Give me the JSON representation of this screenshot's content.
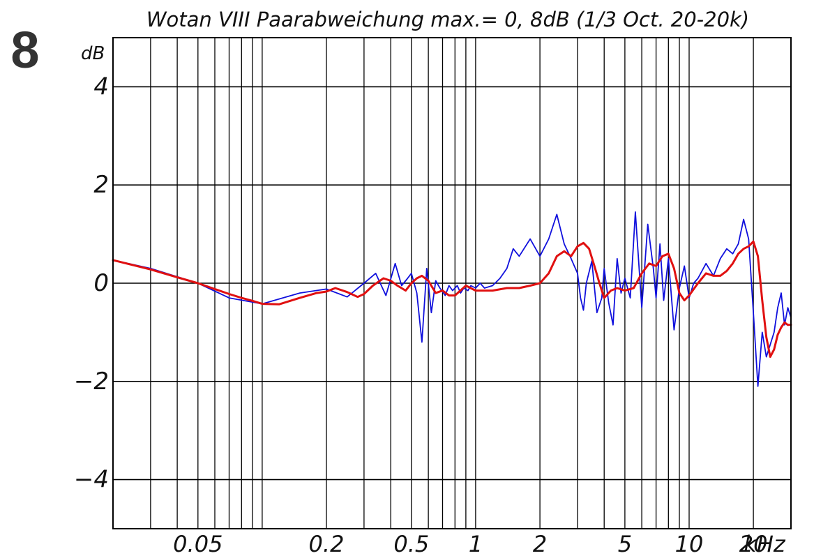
{
  "badge": "8",
  "chart_data": {
    "type": "line",
    "title": "Wotan VIII Paarabweichung  max.= 0, 8dB (1/3 Oct. 20-20k)",
    "ylabel": "dB",
    "xlabel": "",
    "x_unit": "kHz",
    "x_scale": "log",
    "xlim": [
      0.02,
      30
    ],
    "ylim": [
      -5,
      5
    ],
    "grid": true,
    "x_ticks": [
      {
        "value": 0.05,
        "label": "0.05"
      },
      {
        "value": 0.2,
        "label": "0.2"
      },
      {
        "value": 0.5,
        "label": "0.5"
      },
      {
        "value": 1,
        "label": "1"
      },
      {
        "value": 2,
        "label": "2"
      },
      {
        "value": 5,
        "label": "5"
      },
      {
        "value": 10,
        "label": "10"
      },
      {
        "value": 20,
        "label": "20"
      }
    ],
    "x_minor_grid": [
      0.03,
      0.04,
      0.05,
      0.06,
      0.07,
      0.08,
      0.09,
      0.1,
      0.2,
      0.3,
      0.4,
      0.5,
      0.6,
      0.7,
      0.8,
      0.9,
      1,
      2,
      3,
      4,
      5,
      6,
      7,
      8,
      9,
      10,
      20
    ],
    "y_ticks": [
      4,
      2,
      0,
      -2,
      -4
    ],
    "y_tick_labels": [
      "4",
      "2",
      "0",
      "−2",
      "−4"
    ],
    "series": [
      {
        "color": "#1010dd",
        "x": [
          0.02,
          0.03,
          0.05,
          0.07,
          0.1,
          0.15,
          0.2,
          0.25,
          0.3,
          0.34,
          0.38,
          0.42,
          0.45,
          0.48,
          0.5,
          0.53,
          0.56,
          0.59,
          0.62,
          0.65,
          0.68,
          0.72,
          0.75,
          0.78,
          0.82,
          0.85,
          0.88,
          0.92,
          0.95,
          1.0,
          1.05,
          1.1,
          1.2,
          1.3,
          1.4,
          1.5,
          1.6,
          1.8,
          2.0,
          2.2,
          2.4,
          2.6,
          2.8,
          3.0,
          3.1,
          3.2,
          3.3,
          3.5,
          3.7,
          3.9,
          4.0,
          4.2,
          4.4,
          4.6,
          4.8,
          5.0,
          5.3,
          5.6,
          6.0,
          6.4,
          6.8,
          7.0,
          7.3,
          7.6,
          8.0,
          8.5,
          9.0,
          9.5,
          10.0,
          10.5,
          11.0,
          12.0,
          13.0,
          14.0,
          15.0,
          16.0,
          17.0,
          18.0,
          19.0,
          20.0,
          21.0,
          22.0,
          23.0,
          24.0,
          25.0,
          26.0,
          27.0,
          28.0,
          29.0,
          30.0
        ],
        "y": [
          0.47,
          0.3,
          0.0,
          -0.3,
          -0.42,
          -0.2,
          -0.12,
          -0.28,
          0.0,
          0.2,
          -0.25,
          0.4,
          -0.05,
          0.1,
          0.2,
          -0.2,
          -1.2,
          0.3,
          -0.6,
          0.05,
          -0.1,
          -0.25,
          -0.05,
          -0.15,
          -0.05,
          -0.2,
          -0.1,
          -0.15,
          -0.05,
          -0.1,
          0.0,
          -0.1,
          -0.05,
          0.1,
          0.3,
          0.7,
          0.55,
          0.9,
          0.55,
          0.9,
          1.4,
          0.8,
          0.5,
          0.2,
          -0.3,
          -0.55,
          0.0,
          0.45,
          -0.6,
          -0.3,
          0.3,
          -0.4,
          -0.85,
          0.5,
          -0.2,
          0.1,
          -0.3,
          1.45,
          -0.5,
          1.2,
          0.3,
          -0.3,
          0.8,
          -0.35,
          0.5,
          -0.95,
          -0.1,
          0.35,
          -0.3,
          0.0,
          0.1,
          0.4,
          0.15,
          0.5,
          0.7,
          0.6,
          0.8,
          1.3,
          0.9,
          -0.6,
          -2.1,
          -1.0,
          -1.5,
          -1.25,
          -1.0,
          -0.5,
          -0.2,
          -0.85,
          -0.5,
          -0.7
        ]
      },
      {
        "color": "#e01010",
        "x": [
          0.02,
          0.03,
          0.04,
          0.05,
          0.06,
          0.07,
          0.08,
          0.09,
          0.1,
          0.12,
          0.15,
          0.18,
          0.2,
          0.22,
          0.25,
          0.28,
          0.3,
          0.33,
          0.37,
          0.4,
          0.43,
          0.47,
          0.5,
          0.53,
          0.56,
          0.6,
          0.65,
          0.7,
          0.75,
          0.8,
          0.9,
          1.0,
          1.2,
          1.4,
          1.6,
          1.8,
          2.0,
          2.2,
          2.4,
          2.6,
          2.8,
          3.0,
          3.2,
          3.4,
          3.6,
          3.8,
          4.0,
          4.3,
          4.6,
          5.0,
          5.5,
          6.0,
          6.5,
          7.0,
          7.5,
          8.0,
          8.5,
          9.0,
          9.5,
          10.0,
          11.0,
          12.0,
          13.0,
          14.0,
          15.0,
          16.0,
          17.0,
          18.0,
          19.0,
          20.0,
          21.0,
          22.0,
          23.0,
          24.0,
          25.0,
          26.0,
          27.0,
          28.0,
          29.0,
          30.0
        ],
        "y": [
          0.47,
          0.28,
          0.12,
          0.0,
          -0.12,
          -0.22,
          -0.3,
          -0.36,
          -0.42,
          -0.43,
          -0.3,
          -0.2,
          -0.17,
          -0.1,
          -0.18,
          -0.28,
          -0.22,
          -0.05,
          0.1,
          0.05,
          -0.05,
          -0.15,
          0.0,
          0.1,
          0.15,
          0.05,
          -0.2,
          -0.15,
          -0.25,
          -0.25,
          -0.05,
          -0.15,
          -0.15,
          -0.1,
          -0.1,
          -0.05,
          0.0,
          0.2,
          0.55,
          0.65,
          0.55,
          0.75,
          0.82,
          0.7,
          0.35,
          0.0,
          -0.3,
          -0.15,
          -0.1,
          -0.15,
          -0.1,
          0.2,
          0.4,
          0.35,
          0.55,
          0.6,
          0.3,
          -0.2,
          -0.35,
          -0.25,
          0.0,
          0.2,
          0.15,
          0.15,
          0.25,
          0.4,
          0.6,
          0.7,
          0.75,
          0.85,
          0.55,
          -0.35,
          -1.1,
          -1.5,
          -1.35,
          -1.05,
          -0.9,
          -0.8,
          -0.85,
          -0.85
        ]
      }
    ]
  }
}
